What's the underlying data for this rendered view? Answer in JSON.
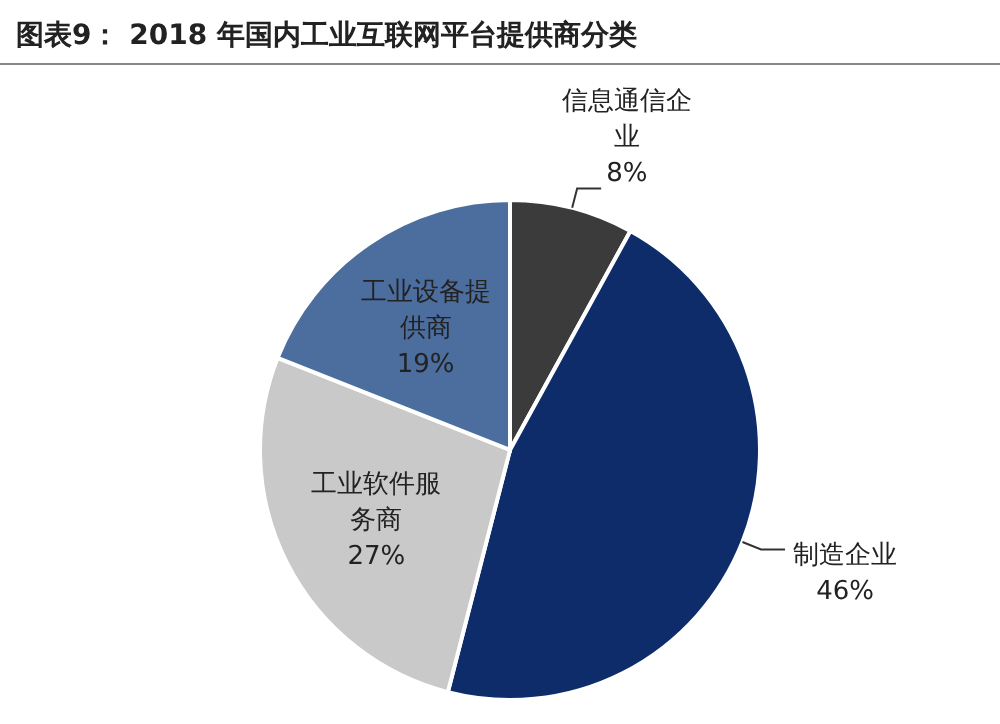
{
  "chart_data": {
    "type": "pie",
    "title": "图表9：  2018 年国内工业互联网平台提供商分类",
    "categories": [
      "信息通信企业",
      "制造企业",
      "工业软件服务商",
      "工业设备提供商"
    ],
    "values": [
      8,
      46,
      27,
      19
    ],
    "colors": [
      "#3b3b3b",
      "#0e2c6a",
      "#c9c9c9",
      "#4b6e9f"
    ],
    "value_labels": [
      "8%",
      "46%",
      "27%",
      "19%"
    ]
  }
}
